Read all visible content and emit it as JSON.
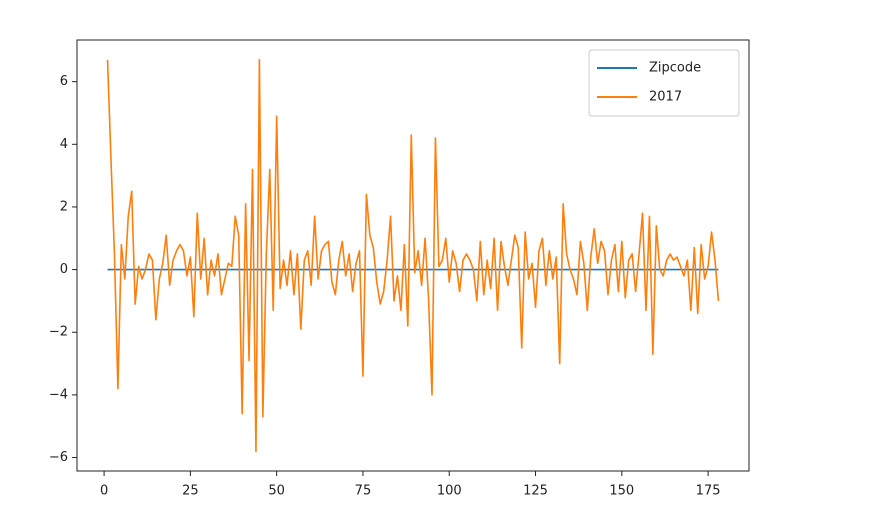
{
  "chart_data": {
    "type": "line",
    "x": [
      1,
      2,
      3,
      4,
      5,
      6,
      7,
      8,
      9,
      10,
      11,
      12,
      13,
      14,
      15,
      16,
      17,
      18,
      19,
      20,
      21,
      22,
      23,
      24,
      25,
      26,
      27,
      28,
      29,
      30,
      31,
      32,
      33,
      34,
      35,
      36,
      37,
      38,
      39,
      40,
      41,
      42,
      43,
      44,
      45,
      46,
      47,
      48,
      49,
      50,
      51,
      52,
      53,
      54,
      55,
      56,
      57,
      58,
      59,
      60,
      61,
      62,
      63,
      64,
      65,
      66,
      67,
      68,
      69,
      70,
      71,
      72,
      73,
      74,
      75,
      76,
      77,
      78,
      79,
      80,
      81,
      82,
      83,
      84,
      85,
      86,
      87,
      88,
      89,
      90,
      91,
      92,
      93,
      94,
      95,
      96,
      97,
      98,
      99,
      100,
      101,
      102,
      103,
      104,
      105,
      106,
      107,
      108,
      109,
      110,
      111,
      112,
      113,
      114,
      115,
      116,
      117,
      118,
      119,
      120,
      121,
      122,
      123,
      124,
      125,
      126,
      127,
      128,
      129,
      130,
      131,
      132,
      133,
      134,
      135,
      136,
      137,
      138,
      139,
      140,
      141,
      142,
      143,
      144,
      145,
      146,
      147,
      148,
      149,
      150,
      151,
      152,
      153,
      154,
      155,
      156,
      157,
      158,
      159,
      160,
      161,
      162,
      163,
      164,
      165,
      166,
      167,
      168,
      169,
      170,
      171,
      172,
      173,
      174,
      175,
      176,
      177,
      178
    ],
    "series": [
      {
        "name": "Zipcode",
        "color": "#1f77b4",
        "values": [
          0,
          0,
          0,
          0,
          0,
          0,
          0,
          0,
          0,
          0,
          0,
          0,
          0,
          0,
          0,
          0,
          0,
          0,
          0,
          0,
          0,
          0,
          0,
          0,
          0,
          0,
          0,
          0,
          0,
          0,
          0,
          0,
          0,
          0,
          0,
          0,
          0,
          0,
          0,
          0,
          0,
          0,
          0,
          0,
          0,
          0,
          0,
          0,
          0,
          0,
          0,
          0,
          0,
          0,
          0,
          0,
          0,
          0,
          0,
          0,
          0,
          0,
          0,
          0,
          0,
          0,
          0,
          0,
          0,
          0,
          0,
          0,
          0,
          0,
          0,
          0,
          0,
          0,
          0,
          0,
          0,
          0,
          0,
          0,
          0,
          0,
          0,
          0,
          0,
          0,
          0,
          0,
          0,
          0,
          0,
          0,
          0,
          0,
          0,
          0,
          0,
          0,
          0,
          0,
          0,
          0,
          0,
          0,
          0,
          0,
          0,
          0,
          0,
          0,
          0,
          0,
          0,
          0,
          0,
          0,
          0,
          0,
          0,
          0,
          0,
          0,
          0,
          0,
          0,
          0,
          0,
          0,
          0,
          0,
          0,
          0,
          0,
          0,
          0,
          0,
          0,
          0,
          0,
          0,
          0,
          0,
          0,
          0,
          0,
          0,
          0,
          0,
          0,
          0,
          0,
          0,
          0,
          0,
          0,
          0,
          0,
          0,
          0,
          0,
          0,
          0,
          0,
          0,
          0,
          0,
          0,
          0,
          0,
          0,
          0,
          0,
          0,
          0
        ]
      },
      {
        "name": "2017",
        "color": "#ff7f0e",
        "values": [
          6.7,
          3.5,
          0.5,
          -3.8,
          0.8,
          -0.3,
          1.7,
          2.5,
          -1.1,
          0.1,
          -0.3,
          0,
          0.5,
          0.3,
          -1.6,
          -0.3,
          0.2,
          1.1,
          -0.5,
          0.3,
          0.6,
          0.8,
          0.6,
          -0.2,
          0.4,
          -1.5,
          1.8,
          -0.3,
          1.0,
          -0.8,
          0.3,
          -0.2,
          0.5,
          -0.8,
          -0.3,
          0.2,
          0.1,
          1.7,
          1.1,
          -4.6,
          2.1,
          -2.9,
          3.2,
          -5.8,
          6.7,
          -4.7,
          0.5,
          3.2,
          -1.3,
          4.9,
          -0.6,
          0.3,
          -0.5,
          0.6,
          -0.8,
          0.5,
          -1.9,
          0.3,
          0.6,
          -0.5,
          1.7,
          -0.3,
          0.6,
          0.8,
          0.9,
          -0.4,
          -0.8,
          0.3,
          0.9,
          -0.2,
          0.5,
          -0.7,
          0.2,
          0.6,
          -3.4,
          2.4,
          1.1,
          0.7,
          -0.4,
          -1.1,
          -0.7,
          0.3,
          1.7,
          -1.0,
          -0.2,
          -1.3,
          0.8,
          -1.8,
          4.3,
          -0.1,
          0.6,
          -0.5,
          1.0,
          -0.9,
          -4.0,
          4.2,
          0.1,
          0.3,
          1.0,
          -0.4,
          0.6,
          0.2,
          -0.7,
          0.3,
          0.5,
          0.3,
          0.0,
          -1.0,
          0.9,
          -0.8,
          0.3,
          -0.6,
          1.0,
          -1.3,
          0.9,
          0.1,
          -0.5,
          0.3,
          1.1,
          0.7,
          -2.5,
          1.2,
          -0.3,
          0.2,
          -1.2,
          0.6,
          1.0,
          -0.5,
          0.6,
          -0.3,
          0.4,
          -3.0,
          2.1,
          0.5,
          0.0,
          -0.3,
          -0.8,
          0.9,
          0.2,
          -1.3,
          0.4,
          1.3,
          0.2,
          0.9,
          0.6,
          -0.8,
          0.3,
          0.8,
          -0.7,
          0.9,
          -0.9,
          0.3,
          0.5,
          -0.7,
          0.5,
          1.8,
          -1.3,
          1.7,
          -2.7,
          1.4,
          0.0,
          -0.2,
          0.3,
          0.5,
          0.3,
          0.4,
          0.1,
          -0.2,
          0.3,
          -1.3,
          0.7,
          -1.4,
          0.8,
          -0.3,
          0.1,
          1.2,
          0.3,
          -1.0
        ]
      }
    ],
    "xlim": [
      -7.85,
      186.85
    ],
    "xticks": [
      0,
      25,
      50,
      75,
      100,
      125,
      150,
      175
    ],
    "ylim": [
      -6.43,
      7.33
    ],
    "yticks": [
      {
        "value": -6,
        "label": "−6"
      },
      {
        "value": -4,
        "label": "−4"
      },
      {
        "value": -2,
        "label": "−2"
      },
      0,
      2,
      4,
      6
    ],
    "legend": "upper right"
  }
}
